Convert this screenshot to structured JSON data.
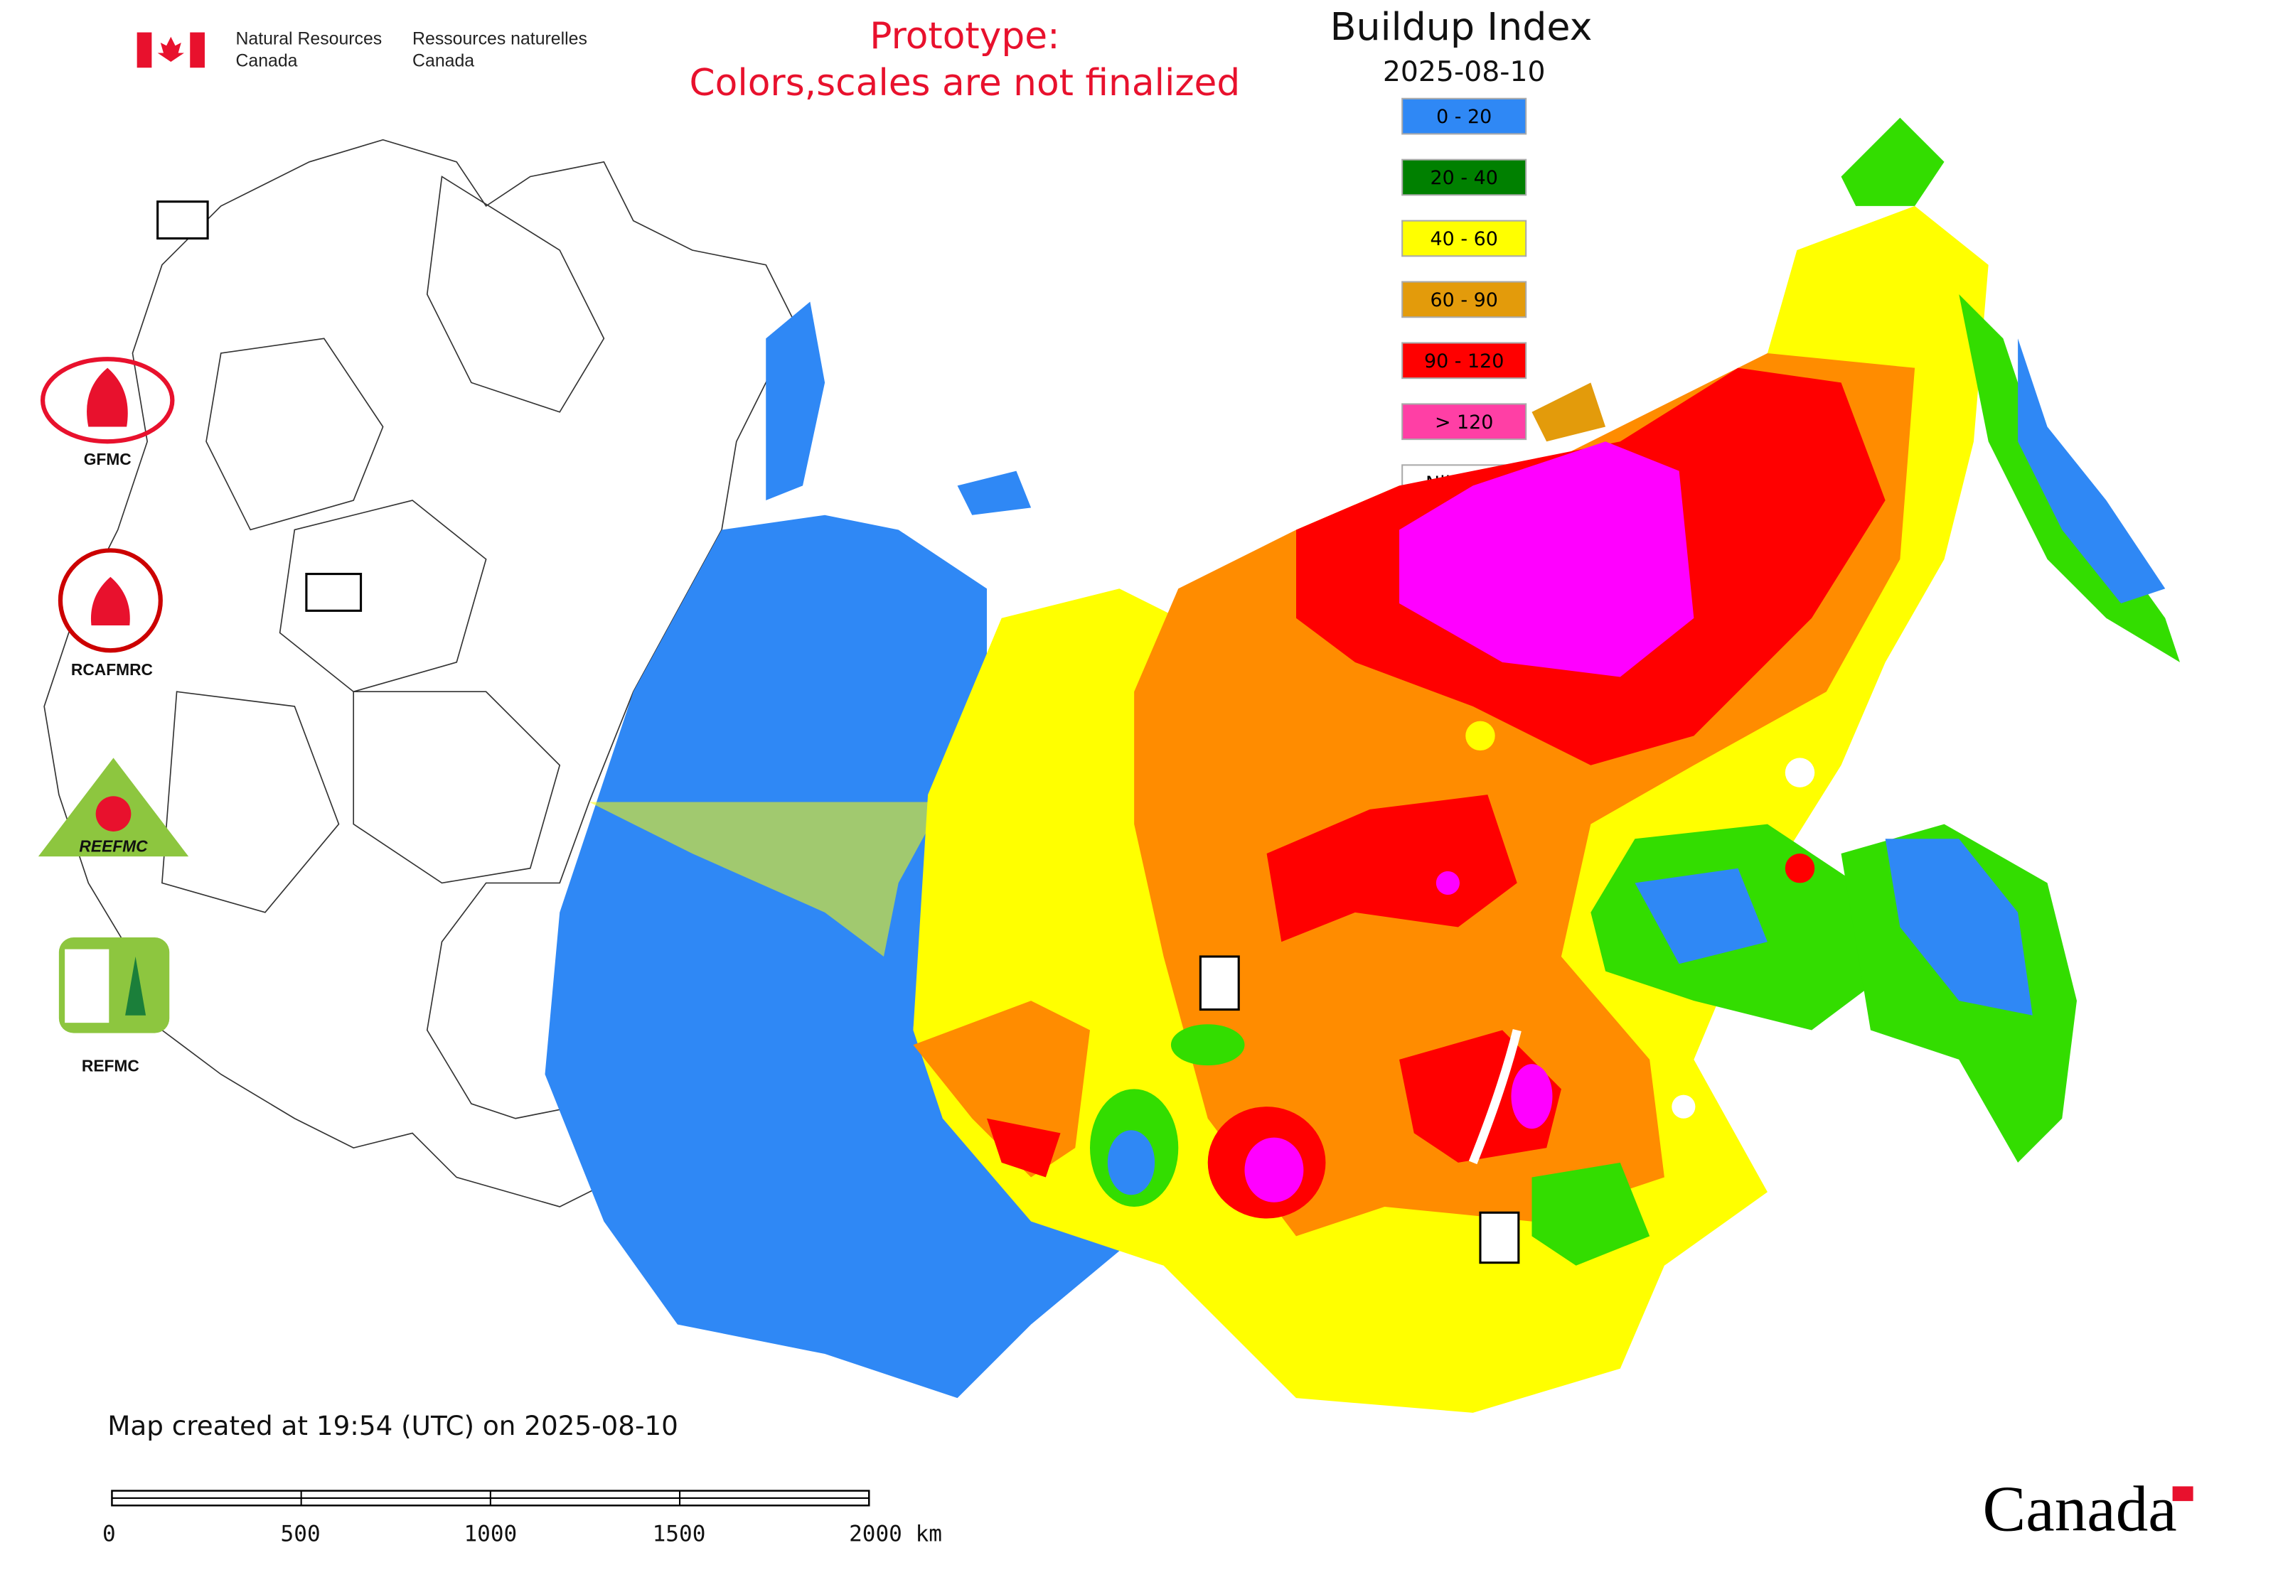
{
  "header": {
    "agency_en": [
      "Natural Resources",
      "Canada"
    ],
    "agency_fr": [
      "Ressources naturelles",
      "Canada"
    ]
  },
  "notice": [
    "Prototype:",
    "Colors,scales are not finalized"
  ],
  "title": "Buildup Index",
  "date": "2025-08-10",
  "legend": [
    {
      "label": "0 - 20",
      "color": "#2f88f5"
    },
    {
      "label": "20 - 40",
      "color": "#008000"
    },
    {
      "label": "40 - 60",
      "color": "#ffff00"
    },
    {
      "label": "60 - 90",
      "color": "#e39b0b"
    },
    {
      "label": "90 - 120",
      "color": "#ff0000"
    },
    {
      "label": "> 120",
      "color": "#ff3fa5"
    },
    {
      "label": "Nil / s.o.",
      "color": "#ffffff"
    }
  ],
  "logos": [
    "GFMC",
    "RCAFMRC",
    "REEFMC",
    "REFMC"
  ],
  "footer": "Map created at 19:54 (UTC) on 2025-08-10",
  "scale_bar": [
    "0",
    "500",
    "1000",
    "1500",
    "2000 km"
  ],
  "wordmark": "Canada"
}
